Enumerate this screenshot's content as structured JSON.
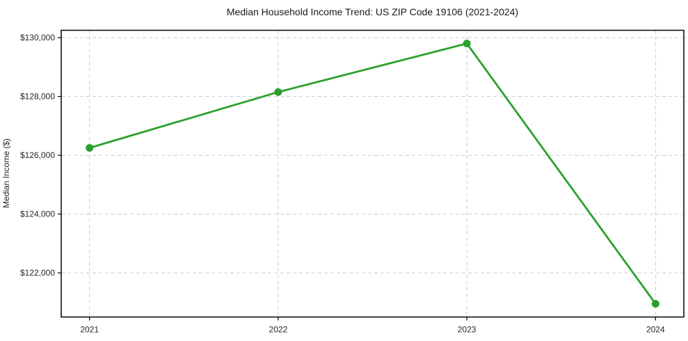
{
  "chart_data": {
    "type": "line",
    "title": "Median Household Income Trend: US ZIP Code 19106 (2021-2024)",
    "xlabel": "",
    "ylabel": "Median Income ($)",
    "x": [
      2021,
      2022,
      2023,
      2024
    ],
    "xtick_labels": [
      "2021",
      "2022",
      "2023",
      "2024"
    ],
    "series": [
      {
        "name": "Median Household Income",
        "values": [
          126250,
          128150,
          129800,
          120950
        ]
      }
    ],
    "yticks": [
      {
        "value": 122000,
        "label": "$122,000"
      },
      {
        "value": 124000,
        "label": "$124,000"
      },
      {
        "value": 126000,
        "label": "$126,000"
      },
      {
        "value": 128000,
        "label": "$128,000"
      },
      {
        "value": 130000,
        "label": "$130,000"
      }
    ],
    "ylim": [
      120500,
      130250
    ],
    "xlim": [
      2020.85,
      2024.15
    ],
    "grid": "dashed-both-axes",
    "legend": "none",
    "marker": "circle",
    "colors": {
      "line": "#2ca02c",
      "marker": "#2ca02c",
      "grid": "#cccccc",
      "spine": "#000000",
      "text": "#262626",
      "background": "#ffffff"
    }
  }
}
